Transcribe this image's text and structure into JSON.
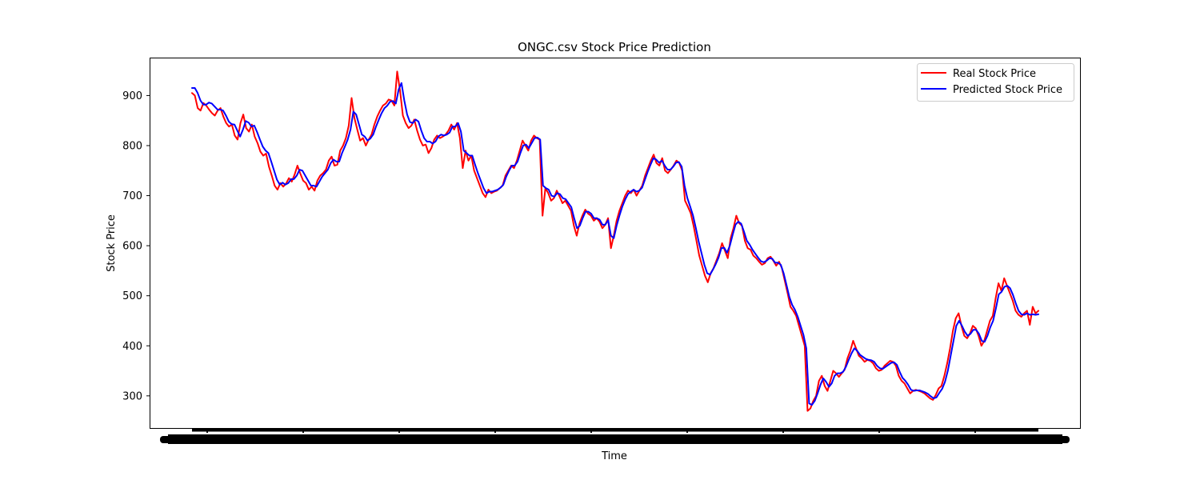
{
  "chart_data": {
    "type": "line",
    "title": "ONGC.csv Stock Price Prediction",
    "xlabel": "Time",
    "ylabel": "Stock Price",
    "ylim": [
      235,
      975
    ],
    "yticks": [
      300,
      400,
      500,
      600,
      700,
      800,
      900
    ],
    "x_tick_labels_legible": false,
    "grid": false,
    "legend_position": "top-right",
    "series": [
      {
        "name": "Real Stock Price",
        "color": "#ff0000",
        "values": [
          905,
          900,
          875,
          870,
          885,
          880,
          872,
          865,
          860,
          870,
          875,
          858,
          845,
          838,
          842,
          820,
          812,
          845,
          862,
          835,
          828,
          842,
          818,
          805,
          788,
          780,
          784,
          758,
          740,
          720,
          712,
          725,
          718,
          724,
          735,
          728,
          742,
          760,
          744,
          730,
          725,
          712,
          718,
          710,
          730,
          740,
          745,
          752,
          770,
          778,
          760,
          762,
          790,
          800,
          815,
          840,
          895,
          855,
          832,
          810,
          815,
          800,
          812,
          822,
          842,
          858,
          870,
          880,
          884,
          892,
          890,
          880,
          948,
          910,
          860,
          845,
          835,
          840,
          852,
          830,
          812,
          800,
          802,
          785,
          795,
          812,
          820,
          815,
          818,
          822,
          830,
          842,
          832,
          845,
          815,
          755,
          790,
          770,
          780,
          750,
          735,
          720,
          705,
          697,
          712,
          705,
          708,
          710,
          715,
          720,
          740,
          750,
          760,
          755,
          770,
          790,
          810,
          800,
          790,
          810,
          820,
          815,
          812,
          660,
          715,
          705,
          690,
          695,
          710,
          698,
          685,
          690,
          680,
          670,
          640,
          620,
          645,
          660,
          672,
          664,
          660,
          650,
          655,
          648,
          635,
          642,
          655,
          595,
          620,
          650,
          670,
          685,
          700,
          710,
          705,
          712,
          700,
          710,
          720,
          740,
          755,
          770,
          782,
          765,
          760,
          775,
          750,
          745,
          752,
          760,
          770,
          765,
          750,
          690,
          678,
          665,
          640,
          610,
          580,
          560,
          540,
          527,
          545,
          555,
          570,
          585,
          605,
          590,
          575,
          615,
          635,
          660,
          645,
          640,
          610,
          595,
          592,
          580,
          575,
          568,
          562,
          565,
          575,
          578,
          570,
          560,
          568,
          555,
          530,
          505,
          478,
          470,
          460,
          440,
          420,
          400,
          270,
          275,
          290,
          300,
          330,
          340,
          320,
          310,
          330,
          350,
          345,
          338,
          345,
          352,
          375,
          390,
          410,
          395,
          380,
          375,
          368,
          372,
          370,
          365,
          355,
          350,
          352,
          360,
          365,
          370,
          368,
          360,
          340,
          330,
          325,
          315,
          305,
          310,
          312,
          310,
          308,
          305,
          300,
          295,
          292,
          302,
          315,
          320,
          340,
          365,
          395,
          430,
          455,
          465,
          440,
          420,
          415,
          425,
          440,
          435,
          420,
          400,
          410,
          430,
          450,
          460,
          495,
          525,
          510,
          535,
          520,
          505,
          490,
          470,
          462,
          458,
          465,
          470,
          442,
          478,
          465,
          470
        ]
      },
      {
        "name": "Predicted Stock Price",
        "color": "#0000ff",
        "values": [
          915,
          915,
          905,
          890,
          882,
          882,
          886,
          884,
          878,
          872,
          872,
          870,
          860,
          848,
          843,
          842,
          830,
          818,
          832,
          849,
          846,
          838,
          840,
          827,
          812,
          798,
          790,
          785,
          768,
          750,
          732,
          722,
          726,
          722,
          725,
          733,
          733,
          740,
          752,
          750,
          740,
          730,
          720,
          720,
          718,
          728,
          738,
          745,
          752,
          765,
          772,
          768,
          768,
          785,
          798,
          812,
          832,
          868,
          862,
          842,
          822,
          818,
          810,
          814,
          822,
          838,
          852,
          865,
          875,
          880,
          888,
          889,
          884,
          912,
          925,
          890,
          862,
          847,
          845,
          852,
          848,
          830,
          815,
          808,
          808,
          804,
          808,
          818,
          822,
          820,
          822,
          826,
          838,
          838,
          845,
          828,
          790,
          785,
          780,
          780,
          762,
          745,
          730,
          715,
          705,
          708,
          708,
          710,
          712,
          716,
          722,
          738,
          750,
          760,
          760,
          768,
          785,
          800,
          802,
          795,
          805,
          815,
          816,
          812,
          720,
          715,
          712,
          700,
          698,
          705,
          703,
          695,
          693,
          685,
          677,
          655,
          635,
          640,
          655,
          668,
          668,
          664,
          655,
          655,
          652,
          642,
          642,
          651,
          620,
          615,
          640,
          660,
          678,
          692,
          703,
          708,
          712,
          708,
          710,
          716,
          732,
          748,
          762,
          775,
          772,
          766,
          770,
          760,
          752,
          752,
          758,
          766,
          767,
          758,
          720,
          695,
          678,
          660,
          635,
          608,
          585,
          562,
          545,
          542,
          552,
          563,
          576,
          595,
          596,
          586,
          600,
          622,
          642,
          648,
          644,
          628,
          610,
          602,
          592,
          584,
          576,
          569,
          567,
          570,
          575,
          574,
          566,
          566,
          562,
          545,
          522,
          498,
          482,
          472,
          458,
          440,
          422,
          395,
          285,
          282,
          290,
          305,
          322,
          335,
          328,
          318,
          325,
          340,
          345,
          345,
          348,
          358,
          372,
          385,
          395,
          390,
          382,
          378,
          374,
          372,
          371,
          368,
          360,
          355,
          354,
          358,
          362,
          366,
          367,
          362,
          348,
          336,
          330,
          322,
          312,
          310,
          311,
          311,
          309,
          307,
          304,
          299,
          295,
          297,
          306,
          314,
          328,
          350,
          380,
          410,
          440,
          450,
          440,
          428,
          420,
          424,
          432,
          432,
          424,
          410,
          408,
          420,
          437,
          450,
          475,
          503,
          508,
          518,
          520,
          515,
          502,
          485,
          470,
          463,
          462,
          465,
          462,
          463,
          462,
          463
        ]
      }
    ]
  }
}
